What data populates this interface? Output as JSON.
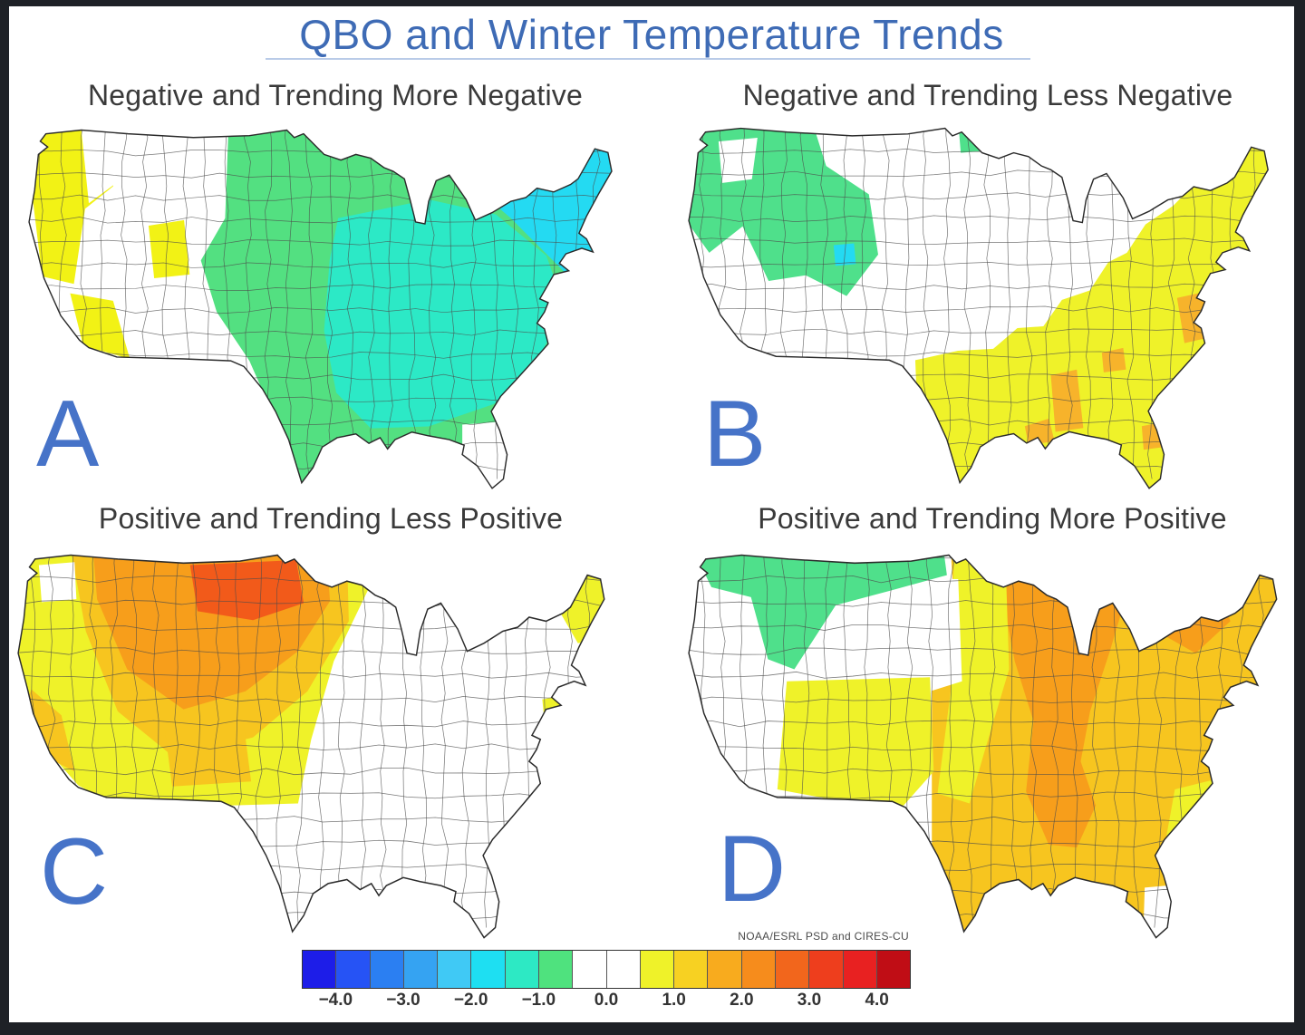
{
  "frame_color": "#1e2126",
  "title": {
    "text": "QBO and Winter Temperature Trends",
    "color": "#3e6bb5"
  },
  "panels": [
    {
      "id": "A",
      "letter": "A",
      "title": "Negative and Trending More Negative",
      "regions": [
        {
          "id": "west-coast-yellow",
          "area": "Pacific coast WA/OR/N-CA",
          "color": "#f2f215"
        },
        {
          "id": "inland-nw-white",
          "area": "inland Northwest",
          "color": "#ffffff"
        },
        {
          "id": "southwest-yellow",
          "area": "southern CA / SW Arizona",
          "color": "#f2f215"
        },
        {
          "id": "utah-yellow",
          "area": "Utah patch",
          "color": "#f2f215"
        },
        {
          "id": "plains-south-green",
          "area": "Plains through Southeast",
          "color": "#53e081"
        },
        {
          "id": "midwest-teal",
          "area": "mid-South / Ohio Valley",
          "color": "#2ce9c6"
        },
        {
          "id": "northeast-cyan",
          "area": "Northeast",
          "color": "#24daf2"
        },
        {
          "id": "florida-white",
          "area": "Florida peninsula",
          "color": "#ffffff"
        }
      ]
    },
    {
      "id": "B",
      "letter": "B",
      "title": "Negative and Trending Less Negative",
      "regions": [
        {
          "id": "northwest-green",
          "area": "Pacific NW / N Rockies",
          "color": "#4fe08b"
        },
        {
          "id": "wa-white-pocket",
          "area": "eastern Washington pocket",
          "color": "#ffffff"
        },
        {
          "id": "utah-cyan-dot",
          "area": "Utah division",
          "color": "#24daf2"
        },
        {
          "id": "minnesota-green-dot",
          "area": "N Dakota/Minnesota border",
          "color": "#4fe08b"
        },
        {
          "id": "southeast-yellow",
          "area": "South, Southeast, East Coast",
          "color": "#eff229"
        },
        {
          "id": "virginia-orange",
          "area": "Virginia / Carolinas",
          "color": "#f7b32b"
        },
        {
          "id": "mississippi-orange",
          "area": "Mississippi",
          "color": "#f7b32b"
        },
        {
          "id": "louisiana-orange",
          "area": "Louisiana coast",
          "color": "#f7b32b"
        },
        {
          "id": "tennessee-orange",
          "area": "Tennessee patch",
          "color": "#f7b32b"
        },
        {
          "id": "florida-orange-dot",
          "area": "central Florida",
          "color": "#f7b32b"
        }
      ]
    },
    {
      "id": "C",
      "letter": "C",
      "title": "Positive and Trending Less Positive",
      "regions": [
        {
          "id": "west-yellow",
          "area": "western half of US",
          "color": "#eff229"
        },
        {
          "id": "rockies-gold",
          "area": "Rockies / Great Basin",
          "color": "#f7c51f"
        },
        {
          "id": "nrockies-orange",
          "area": "Montana / Wyoming / Dakotas",
          "color": "#f79e1b"
        },
        {
          "id": "montana-red",
          "area": "Montana-N Dakota border",
          "color": "#f25a1a"
        },
        {
          "id": "srockies-gold",
          "area": "Colorado / New Mexico",
          "color": "#f7c51f"
        },
        {
          "id": "socal-gold",
          "area": "S California coast",
          "color": "#f7c51f"
        },
        {
          "id": "wa-white-pocket",
          "area": "Puget Sound pocket",
          "color": "#ffffff"
        },
        {
          "id": "newengland-yellow",
          "area": "northern New England",
          "color": "#eff229"
        },
        {
          "id": "nyc-yellow-dot",
          "area": "NYC coastal division",
          "color": "#eff229"
        }
      ]
    },
    {
      "id": "D",
      "letter": "D",
      "title": "Positive and Trending More Positive",
      "regions": [
        {
          "id": "east-south-gold",
          "area": "East and South",
          "color": "#f7c51f"
        },
        {
          "id": "midwest-orange",
          "area": "Midwest / Mississippi Valley",
          "color": "#f79e1b"
        },
        {
          "id": "plains-yellow-strip",
          "area": "central Plains strip",
          "color": "#eff229"
        },
        {
          "id": "nplains-white",
          "area": "E Montana / W Dakotas pocket",
          "color": "#ffffff"
        },
        {
          "id": "northwest-green",
          "area": "Pacific NW / N Rockies",
          "color": "#4fe08b"
        },
        {
          "id": "southwest-yellow",
          "area": "Four Corners / W Texas",
          "color": "#eff229"
        },
        {
          "id": "secoast-yellow",
          "area": "SE coastal plain",
          "color": "#eff229"
        },
        {
          "id": "northeast-orange",
          "area": "upstate NY / N New England",
          "color": "#f79e1b"
        },
        {
          "id": "sflorida-white",
          "area": "south Florida",
          "color": "#ffffff"
        }
      ]
    }
  ],
  "colorbar": {
    "credit": "NOAA/ESRL PSD and CIRES-CU",
    "tick_labels": [
      "−4.0",
      "−3.0",
      "−2.0",
      "−1.0",
      "0.0",
      "1.0",
      "2.0",
      "3.0",
      "4.0"
    ],
    "cell_colors": [
      "#1d1de8",
      "#2653f5",
      "#2b7ff2",
      "#35a3f2",
      "#40c9f5",
      "#1edff2",
      "#2de9c4",
      "#4fe27e",
      "#ffffff",
      "#ffffff",
      "#eff229",
      "#f7d122",
      "#f8ab1e",
      "#f68c1c",
      "#f2661c",
      "#ee3e1d",
      "#e82121",
      "#c00d15"
    ],
    "value_min": -4.5,
    "value_max": 4.5,
    "cell_step": 0.5
  }
}
